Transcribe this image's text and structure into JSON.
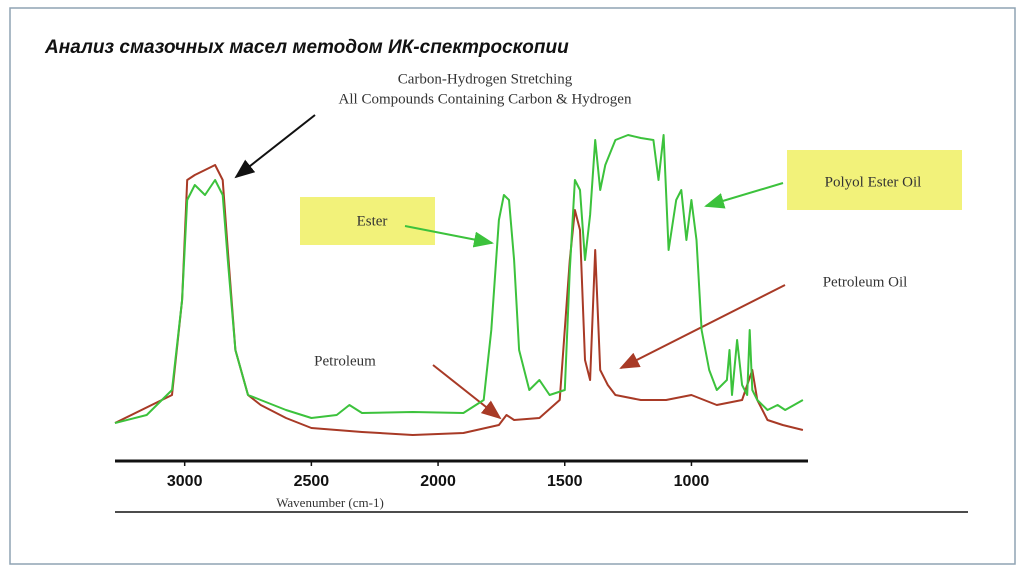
{
  "chart_data": {
    "type": "line",
    "title": "Анализ смазочных масел методом ИК-спектроскопии",
    "x_label": "Wavenumber (cm-1)",
    "xlim": [
      3275,
      540
    ],
    "xticks": [
      3000,
      2500,
      2000,
      1500,
      1000
    ],
    "ylim": [
      0,
      330
    ],
    "grid": false,
    "annotations": [
      "Carbon-Hydrogen Stretching",
      "All Compounds Containing Carbon  & Hydrogen",
      "Ester",
      "Petroleum"
    ],
    "series": [
      {
        "name": "Polyol Ester Oil",
        "color": "#3cc23c",
        "x": [
          3275,
          3150,
          3050,
          3010,
          2990,
          2960,
          2920,
          2880,
          2850,
          2830,
          2800,
          2750,
          2700,
          2600,
          2500,
          2400,
          2350,
          2300,
          2100,
          1900,
          1820,
          1790,
          1760,
          1740,
          1720,
          1700,
          1680,
          1640,
          1600,
          1560,
          1500,
          1480,
          1460,
          1440,
          1420,
          1400,
          1380,
          1360,
          1340,
          1300,
          1250,
          1200,
          1150,
          1130,
          1110,
          1090,
          1060,
          1040,
          1020,
          1000,
          980,
          960,
          930,
          900,
          860,
          850,
          840,
          820,
          800,
          780,
          770,
          760,
          740,
          700,
          660,
          630,
          560
        ],
        "values": [
          37,
          45,
          70,
          160,
          260,
          275,
          265,
          280,
          265,
          200,
          110,
          65,
          60,
          50,
          42,
          45,
          55,
          47,
          48,
          47,
          60,
          130,
          240,
          265,
          260,
          200,
          110,
          70,
          80,
          65,
          70,
          190,
          280,
          270,
          200,
          245,
          320,
          270,
          295,
          320,
          325,
          322,
          320,
          280,
          325,
          210,
          260,
          270,
          220,
          260,
          220,
          130,
          90,
          70,
          80,
          110,
          65,
          120,
          75,
          65,
          130,
          70,
          60,
          50,
          55,
          50,
          60
        ]
      },
      {
        "name": "Petroleum Oil",
        "color": "#a83a26",
        "x": [
          3275,
          3050,
          3010,
          2990,
          2960,
          2920,
          2880,
          2850,
          2830,
          2800,
          2750,
          2700,
          2600,
          2500,
          2300,
          2100,
          1900,
          1760,
          1730,
          1700,
          1600,
          1520,
          1480,
          1460,
          1440,
          1420,
          1400,
          1380,
          1360,
          1330,
          1300,
          1200,
          1100,
          1000,
          950,
          900,
          800,
          760,
          740,
          700,
          640,
          560
        ],
        "values": [
          37,
          65,
          160,
          280,
          285,
          290,
          295,
          280,
          210,
          110,
          65,
          55,
          42,
          32,
          28,
          25,
          27,
          35,
          45,
          40,
          42,
          60,
          200,
          250,
          230,
          100,
          80,
          210,
          90,
          75,
          65,
          60,
          60,
          65,
          60,
          55,
          60,
          90,
          60,
          40,
          35,
          30
        ]
      }
    ]
  }
}
